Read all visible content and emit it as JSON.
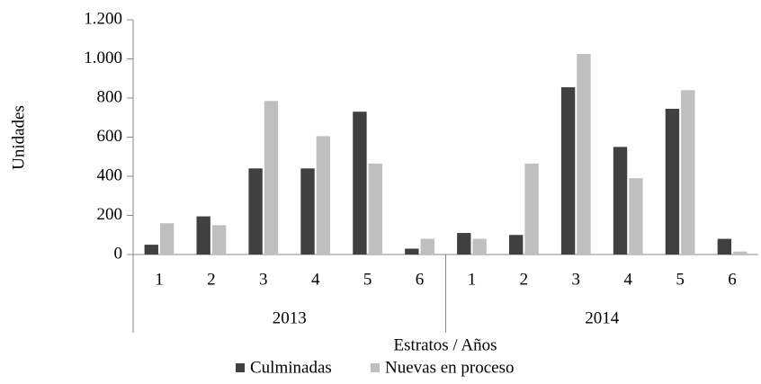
{
  "chart_data": {
    "type": "bar",
    "y_label": "Unidades",
    "x_label": "Estratos / Años",
    "categories": [
      "1",
      "2",
      "3",
      "4",
      "5",
      "6",
      "1",
      "2",
      "3",
      "4",
      "5",
      "6"
    ],
    "category_groups": [
      "2013",
      "2014"
    ],
    "series": [
      {
        "name": "Culminadas",
        "color": "#404040",
        "values": [
          50,
          195,
          440,
          440,
          730,
          30,
          110,
          100,
          855,
          550,
          745,
          80
        ]
      },
      {
        "name": "Nuevas en proceso",
        "color": "#bfbfbf",
        "values": [
          160,
          150,
          785,
          605,
          465,
          80,
          80,
          465,
          1025,
          390,
          840,
          15
        ]
      }
    ],
    "ylim": [
      0,
      1200
    ],
    "yticks": [
      0,
      200,
      400,
      600,
      800,
      {
        "value": 1000,
        "label": "1.000"
      },
      {
        "value": 1200,
        "label": "1.200"
      }
    ],
    "grid": false,
    "legend": "bottom"
  }
}
